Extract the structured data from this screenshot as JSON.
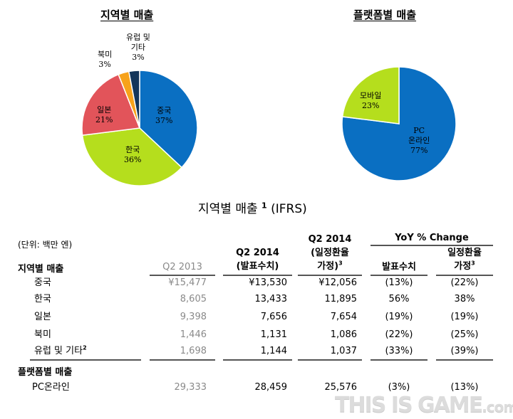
{
  "chart_data": [
    {
      "type": "pie",
      "title": "지역별 매출",
      "slices": [
        {
          "label": "중국",
          "value": 37,
          "display": "37%",
          "color": "#0a6fc2"
        },
        {
          "label": "한국",
          "value": 36,
          "display": "36%",
          "color": "#b5de1d"
        },
        {
          "label": "일본",
          "value": 21,
          "display": "21%",
          "color": "#e2545a"
        },
        {
          "label": "북미",
          "value": 3,
          "display": "3%",
          "color": "#f7a21b"
        },
        {
          "label": "유럽 및 기타",
          "label_lines": [
            "유럽 및",
            "기타"
          ],
          "value": 3,
          "display": "3%",
          "color": "#13355a"
        }
      ]
    },
    {
      "type": "pie",
      "title": "플랫폼별 매출",
      "slices": [
        {
          "label": "PC 온라인",
          "label_lines": [
            "PC",
            "온라인"
          ],
          "value": 77,
          "display": "77%",
          "color": "#0a6fc2"
        },
        {
          "label": "모바일",
          "value": 23,
          "display": "23%",
          "color": "#b5de1d"
        }
      ]
    },
    {
      "type": "table",
      "title": "지역별 매출",
      "title_sup": "1",
      "title_suffix": "(IFRS)",
      "unit": "(단위: 백만 엔)",
      "group_header": "YoY % Change",
      "columns": [
        {
          "lines": [
            "Q2 2013"
          ],
          "sup": ""
        },
        {
          "lines": [
            "Q2 2014",
            "(발표수치)"
          ],
          "sup": ""
        },
        {
          "lines": [
            "Q2 2014",
            "(일정환율",
            "가정)"
          ],
          "sup": "3"
        },
        {
          "lines": [
            "발표수치"
          ],
          "sup": ""
        },
        {
          "lines": [
            "일정환율",
            "가정"
          ],
          "sup": "3"
        }
      ],
      "sections": [
        {
          "header": "지역별 매출",
          "rows": [
            {
              "label": "중국",
              "sup": "",
              "values": [
                "¥15,477",
                "¥13,530",
                "¥12,056",
                "(13%)",
                "(22%)"
              ]
            },
            {
              "label": "한국",
              "sup": "",
              "values": [
                "8,605",
                "13,433",
                "11,895",
                "56%",
                "38%"
              ]
            },
            {
              "label": "일본",
              "sup": "",
              "values": [
                "9,398",
                "7,656",
                "7,654",
                "(19%)",
                "(19%)"
              ]
            },
            {
              "label": "북미",
              "sup": "",
              "values": [
                "1,446",
                "1,131",
                "1,086",
                "(22%)",
                "(25%)"
              ]
            },
            {
              "label": "유럽 및 기타",
              "sup": "2",
              "values": [
                "1,698",
                "1,144",
                "1,037",
                "(33%)",
                "(39%)"
              ]
            }
          ]
        },
        {
          "header": "플랫폼별 매출",
          "rows": [
            {
              "label": "PC온라인",
              "sup": "",
              "values": [
                "29,333",
                "28,459",
                "25,576",
                "(3%)",
                "(13%)"
              ]
            }
          ]
        }
      ]
    }
  ],
  "watermark": {
    "main": "THIS IS GAME",
    "suffix": ".com"
  }
}
